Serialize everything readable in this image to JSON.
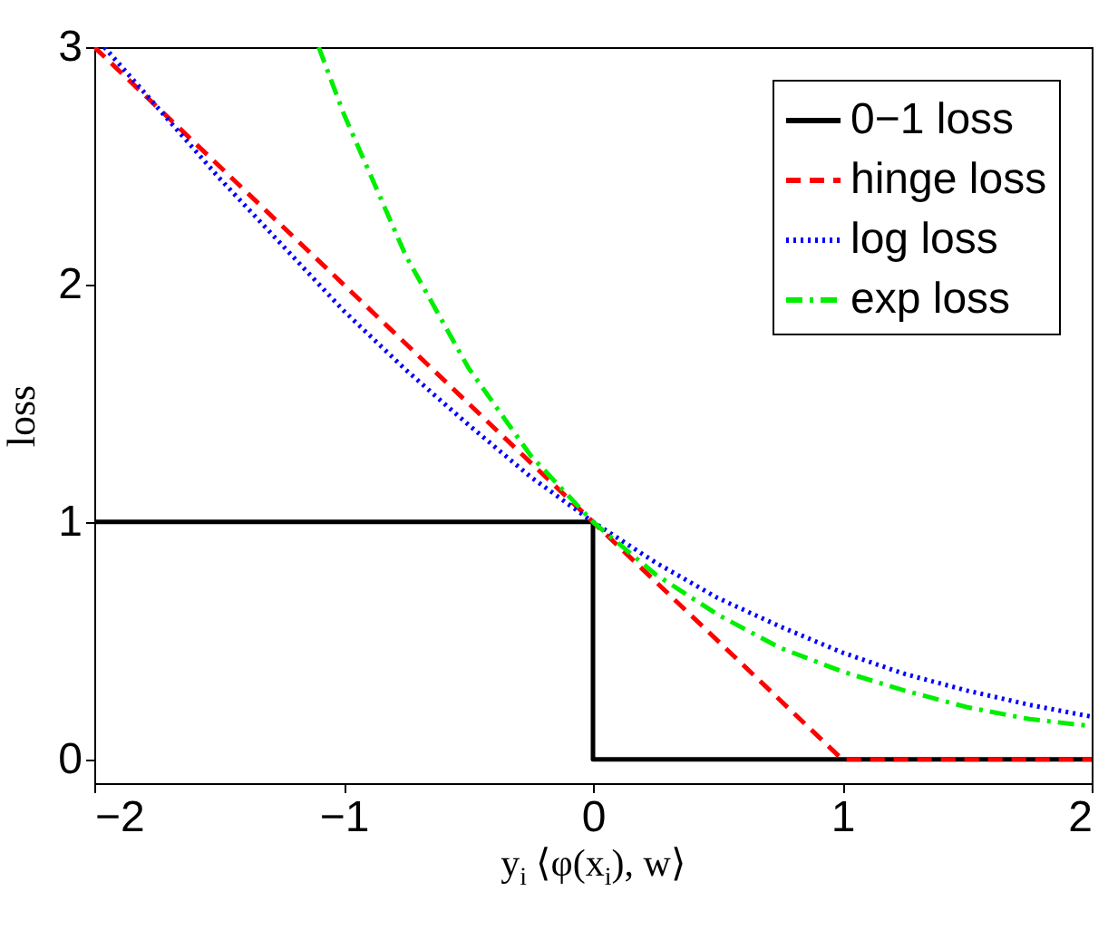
{
  "chart_data": {
    "type": "line",
    "xlabel": "y$_{i}$ ⟨φ(x$_{i}$), w⟩",
    "ylabel": "loss",
    "xlim": [
      -2,
      2
    ],
    "ylim": [
      -0.1,
      3
    ],
    "xticks": [
      {
        "value": -2,
        "label": "−2"
      },
      {
        "value": -1,
        "label": "−1"
      },
      0,
      1,
      2
    ],
    "yticks": [
      0,
      1,
      2,
      3
    ],
    "grid": false,
    "legend": "top right",
    "series": [
      {
        "name": "0−1 loss",
        "color": "#000000",
        "line_style": "solid",
        "x": [
          -2,
          0,
          0,
          2
        ],
        "values": [
          1,
          1,
          0,
          0
        ]
      },
      {
        "name": "hinge loss",
        "color": "#ff0000",
        "line_style": "dashed",
        "x": [
          -2,
          1,
          2
        ],
        "values": [
          3,
          0,
          0
        ]
      },
      {
        "name": "log loss",
        "color": "#0000ff",
        "line_style": "dotted",
        "x": [
          -1.96,
          -1.75,
          -1.5,
          -1.25,
          -1,
          -0.75,
          -0.5,
          -0.25,
          0,
          0.25,
          0.5,
          0.75,
          1,
          1.25,
          1.5,
          1.75,
          2
        ],
        "values": [
          3.0,
          2.75,
          2.45,
          2.17,
          1.89,
          1.64,
          1.41,
          1.19,
          1,
          0.83,
          0.68,
          0.56,
          0.45,
          0.36,
          0.29,
          0.23,
          0.18
        ]
      },
      {
        "name": "exp loss",
        "color": "#00ee00",
        "line_style": "dashdot",
        "x": [
          -1.1,
          -1,
          -0.75,
          -0.5,
          -0.25,
          0,
          0.25,
          0.5,
          0.75,
          1,
          1.25,
          1.5,
          1.75,
          2
        ],
        "values": [
          3.0,
          2.72,
          2.12,
          1.65,
          1.28,
          1,
          0.78,
          0.61,
          0.47,
          0.37,
          0.29,
          0.22,
          0.17,
          0.14
        ]
      }
    ]
  }
}
